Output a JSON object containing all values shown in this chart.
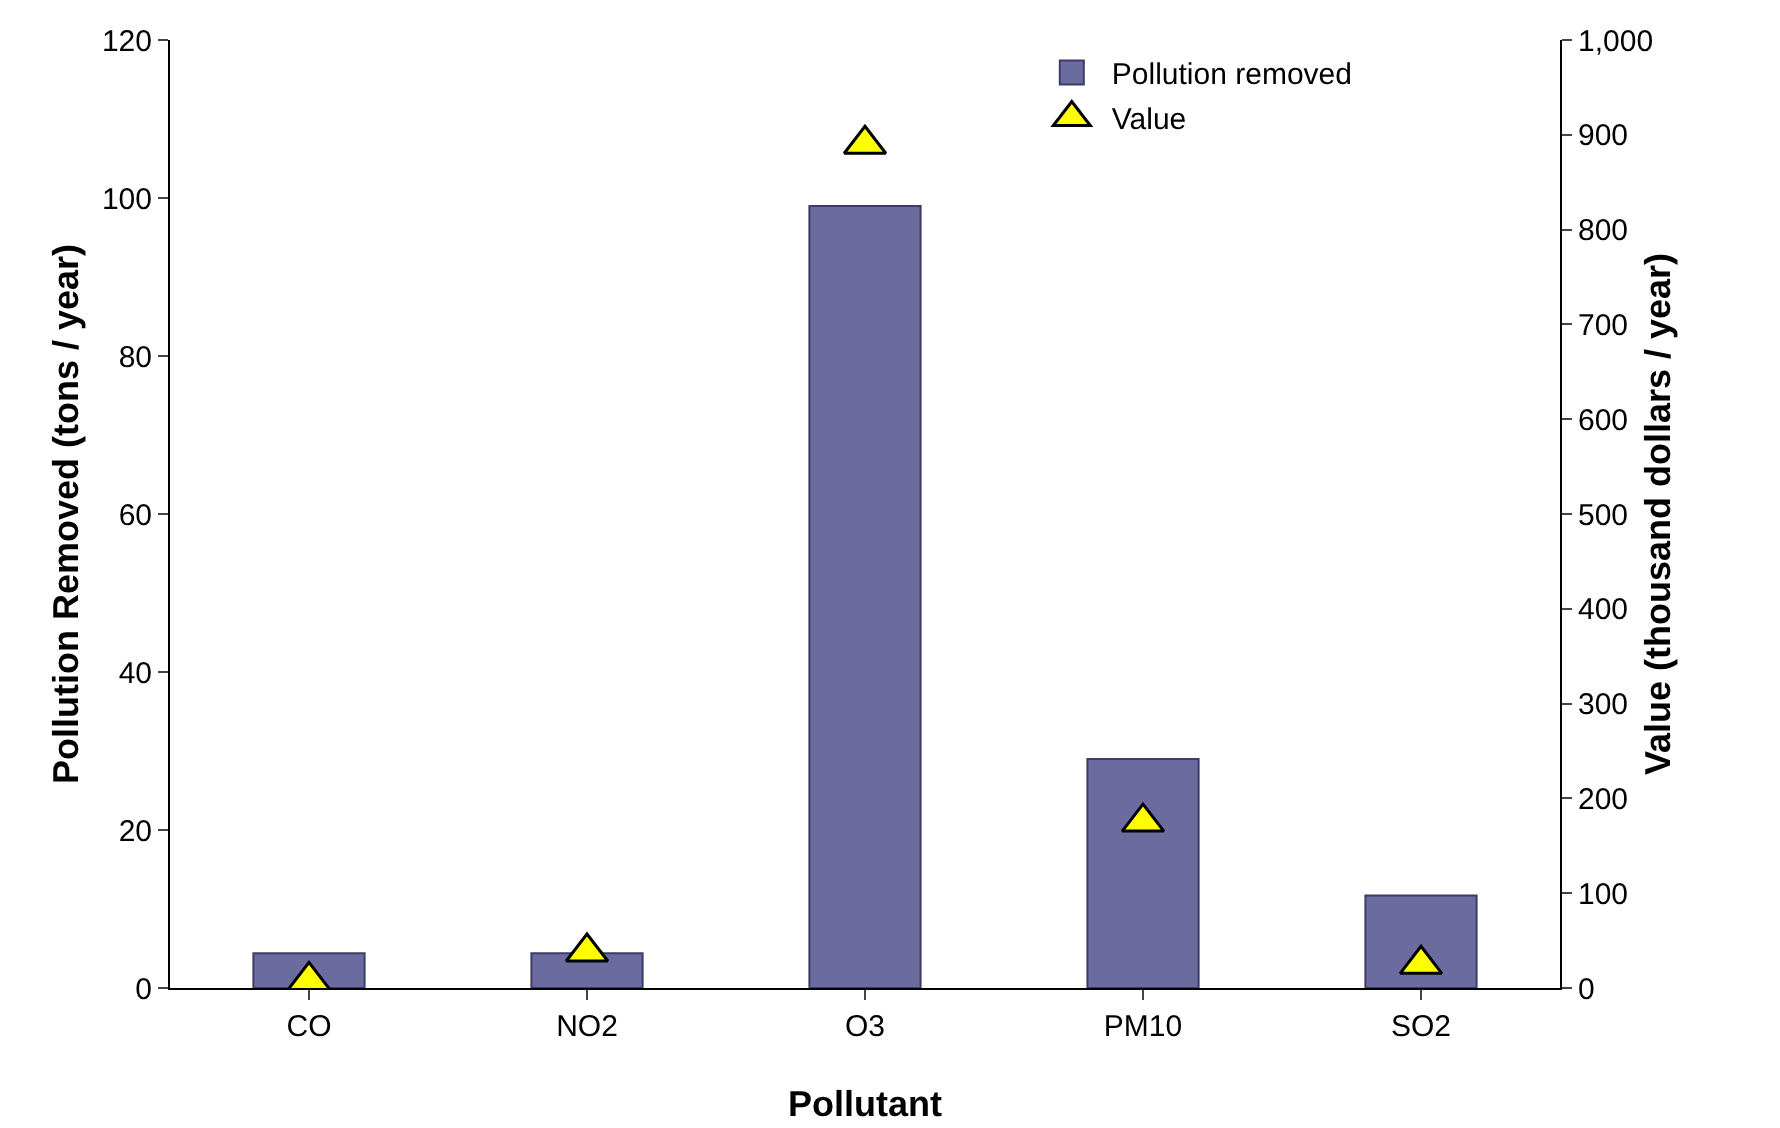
{
  "chart_data": {
    "type": "bar",
    "xlabel": "Pollutant",
    "ylabel": "Pollution Removed (tons / year)",
    "y2label": "Value (thousand dollars / year)",
    "categories": [
      "CO",
      "NO2",
      "O3",
      "PM10",
      "SO2"
    ],
    "series": [
      {
        "name": "Pollution removed",
        "color": "#6b6ba0",
        "values": [
          4.4,
          4.4,
          99,
          29,
          11.7
        ]
      },
      {
        "name": "Value",
        "type": "scatter",
        "axis": "y2",
        "marker": "triangle",
        "color": "#ffff00",
        "values": [
          8,
          38,
          890,
          175,
          25
        ]
      }
    ],
    "ylim": [
      0,
      120
    ],
    "yticks": [
      0,
      20,
      40,
      60,
      80,
      100,
      120
    ],
    "y2lim": [
      0,
      1000
    ],
    "y2ticks": [
      {
        "value": 0,
        "label": "0"
      },
      {
        "value": 100,
        "label": "100"
      },
      {
        "value": 200,
        "label": "200"
      },
      {
        "value": 300,
        "label": "300"
      },
      {
        "value": 400,
        "label": "400"
      },
      {
        "value": 500,
        "label": "500"
      },
      {
        "value": 600,
        "label": "600"
      },
      {
        "value": 700,
        "label": "700"
      },
      {
        "value": 800,
        "label": "800"
      },
      {
        "value": 900,
        "label": "900"
      },
      {
        "value": 1000,
        "label": "1,000"
      }
    ],
    "grid": false,
    "legend": "top right"
  }
}
